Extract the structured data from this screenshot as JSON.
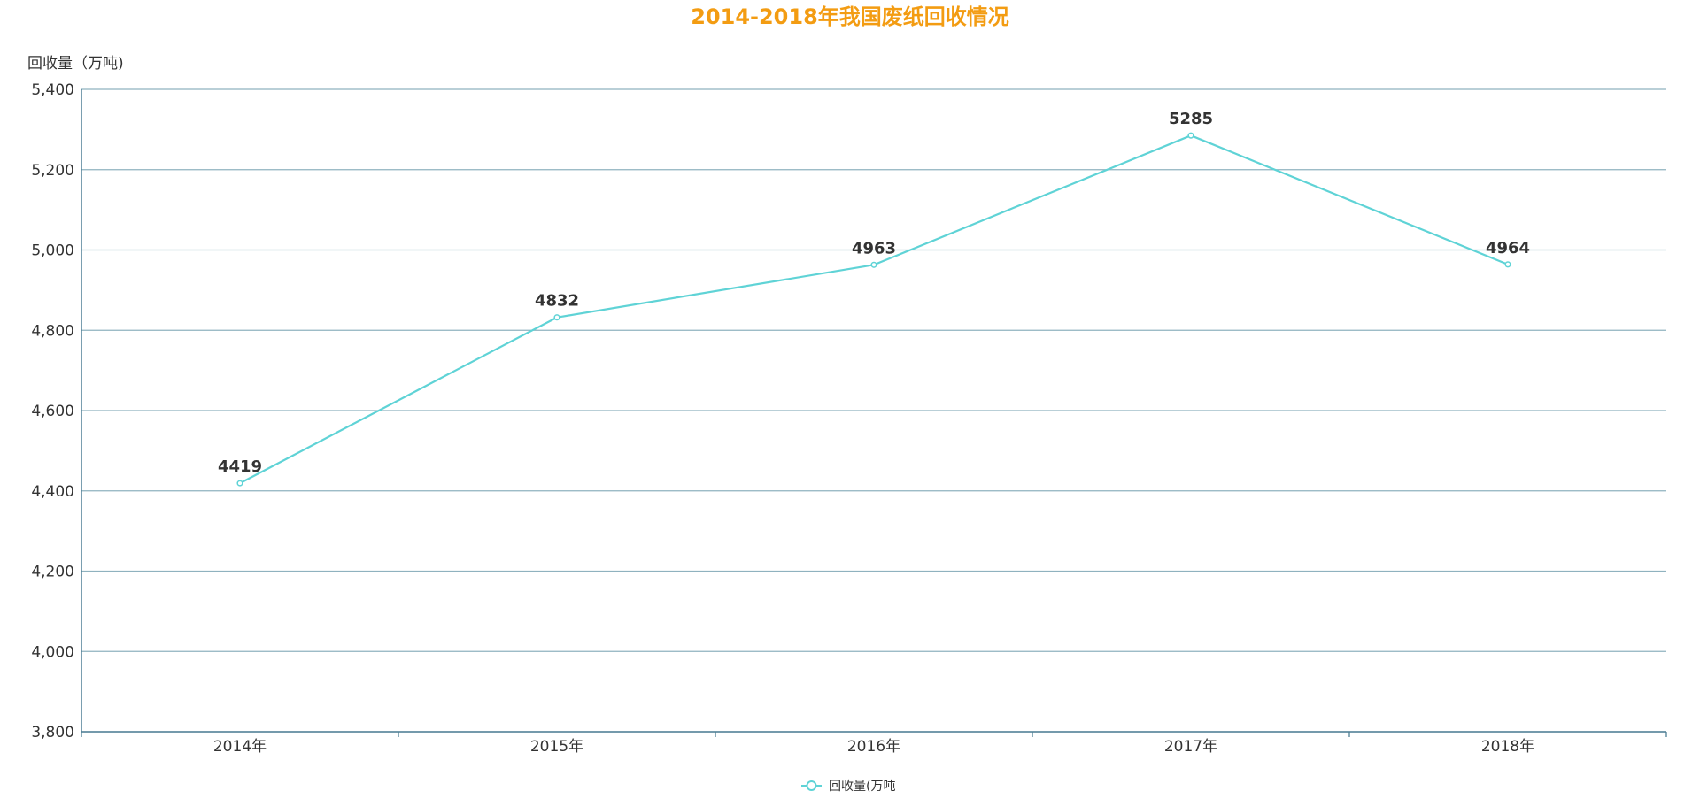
{
  "chart_data": {
    "type": "line",
    "title": "2014-2018年我国废纸回收情况",
    "ylabel": "回收量（万吨)",
    "xlabel": "",
    "categories": [
      "2014年",
      "2015年",
      "2016年",
      "2017年",
      "2018年"
    ],
    "series": [
      {
        "name": "回收量(万吨",
        "values": [
          4419,
          4832,
          4963,
          5285,
          4964
        ]
      }
    ],
    "ylim": [
      3800,
      5400
    ],
    "yticks": [
      3800,
      4000,
      4200,
      4400,
      4600,
      4800,
      5000,
      5200,
      5400
    ],
    "ytick_labels": [
      "3,800",
      "4,000",
      "4,200",
      "4,400",
      "4,600",
      "4,800",
      "5,000",
      "5,200",
      "5,400"
    ],
    "grid": true,
    "legend_position": "bottom-center",
    "data_labels": true
  },
  "colors": {
    "title": "#f39c12",
    "series": "#5fd3d6",
    "axis": "#4f7f95",
    "grid": "#8fb2bf",
    "text": "#333333"
  }
}
